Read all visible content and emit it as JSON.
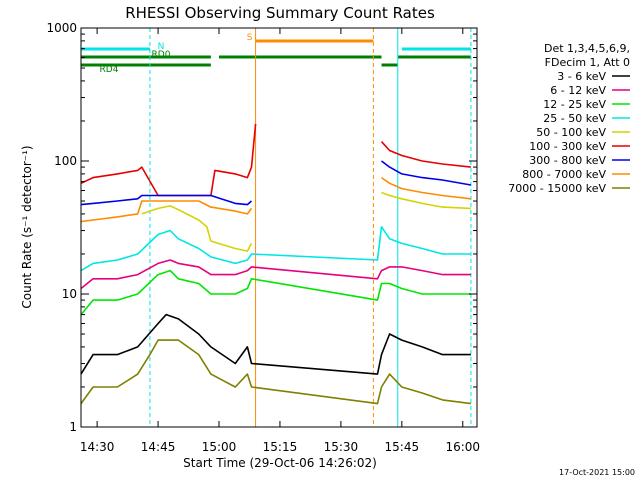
{
  "chart_data": {
    "type": "line",
    "title": "RHESSI Observing Summary Count Rates",
    "xlabel": "Start Time (29-Oct-06 14:26:02)",
    "ylabel": "Count Rate (s⁻¹ detector⁻¹)",
    "y_scale": "log",
    "ylim": [
      1,
      1000
    ],
    "xlim": [
      "14:26:02",
      "16:03:30"
    ],
    "x_ticks": [
      "14:30",
      "14:45",
      "15:00",
      "15:15",
      "15:30",
      "15:45",
      "16:00"
    ],
    "y_ticks": [
      "1",
      "10",
      "100",
      "1000"
    ],
    "legend_title": [
      "Det 1,3,4,5,6,9,",
      "FDecim 1, Att 0"
    ],
    "legend_position": "right",
    "date_stamp": "17-Oct-2021 15:00",
    "series": [
      {
        "name": "3 - 6 keV",
        "color": "#000000",
        "times": [
          "14:26:02",
          "14:29",
          "14:35",
          "14:40",
          "14:45",
          "14:47",
          "14:50",
          "14:55",
          "14:58",
          "15:04",
          "15:07",
          "15:08",
          "15:39",
          "15:40",
          "15:42",
          "15:45",
          "15:50",
          "15:55",
          "16:02"
        ],
        "values": [
          2.5,
          3.5,
          3.5,
          4,
          6,
          7,
          6.5,
          5,
          4,
          3,
          4,
          3,
          2.5,
          3.5,
          5,
          4.5,
          4,
          3.5,
          3.5
        ]
      },
      {
        "name": "6 - 12 keV",
        "color": "#e6007e",
        "times": [
          "14:26:02",
          "14:29",
          "14:35",
          "14:40",
          "14:45",
          "14:48",
          "14:50",
          "14:55",
          "14:58",
          "15:04",
          "15:07",
          "15:08",
          "15:39",
          "15:40",
          "15:42",
          "15:45",
          "15:50",
          "15:55",
          "16:02"
        ],
        "values": [
          11,
          13,
          13,
          14,
          17,
          18,
          17,
          16,
          14,
          14,
          15,
          16,
          13,
          15,
          16,
          16,
          15,
          14,
          14
        ]
      },
      {
        "name": "12 - 25 keV",
        "color": "#00e600",
        "times": [
          "14:26:02",
          "14:29",
          "14:35",
          "14:40",
          "14:45",
          "14:48",
          "14:50",
          "14:55",
          "14:58",
          "15:04",
          "15:07",
          "15:08",
          "15:39",
          "15:40",
          "15:42",
          "15:45",
          "15:50",
          "15:55",
          "16:02"
        ],
        "values": [
          7,
          9,
          9,
          10,
          14,
          15,
          13,
          12,
          10,
          10,
          11,
          13,
          9,
          12,
          12,
          11,
          10,
          10,
          10
        ]
      },
      {
        "name": "25 - 50 keV",
        "color": "#00e6e6",
        "times": [
          "14:26:02",
          "14:29",
          "14:35",
          "14:40",
          "14:45",
          "14:48",
          "14:50",
          "14:55",
          "14:58",
          "15:04",
          "15:07",
          "15:08",
          "15:39",
          "15:40",
          "15:42",
          "15:45",
          "15:50",
          "15:55",
          "16:02"
        ],
        "values": [
          15,
          17,
          18,
          20,
          28,
          30,
          26,
          22,
          19,
          17,
          18,
          20,
          18,
          32,
          26,
          24,
          22,
          20,
          20
        ]
      },
      {
        "name": "50 - 100 keV",
        "color": "#d4d400",
        "times": [
          "14:26:02",
          "14:38",
          "14:41",
          "14:45",
          "14:48",
          "14:50",
          "14:55",
          "14:57",
          "14:58",
          "15:04",
          "15:07",
          "15:08",
          "15:39",
          "15:40",
          "15:42",
          "15:45",
          "15:50",
          "15:55",
          "16:02"
        ],
        "values": [
          null,
          null,
          40,
          44,
          46,
          43,
          36,
          32,
          25,
          22,
          21,
          24,
          null,
          58,
          55,
          52,
          48,
          45,
          44
        ]
      },
      {
        "name": "100 - 300 keV",
        "color": "#e60000",
        "times": [
          "14:26:02",
          "14:29",
          "14:35",
          "14:40",
          "14:41",
          "14:45",
          "14:50",
          "14:55",
          "14:58",
          "14:59",
          "15:04",
          "15:07",
          "15:08",
          "15:09",
          "15:39",
          "15:40",
          "15:42",
          "15:45",
          "15:50",
          "15:55",
          "16:02"
        ],
        "values": [
          68,
          75,
          80,
          85,
          90,
          55,
          55,
          55,
          55,
          85,
          80,
          75,
          90,
          190,
          null,
          140,
          120,
          110,
          100,
          95,
          90
        ]
      },
      {
        "name": "300 - 800 keV",
        "color": "#0000e6",
        "times": [
          "14:26:02",
          "14:29",
          "14:35",
          "14:40",
          "14:41",
          "14:45",
          "14:50",
          "14:55",
          "14:58",
          "15:04",
          "15:07",
          "15:08",
          "15:39",
          "15:40",
          "15:42",
          "15:45",
          "15:50",
          "15:55",
          "16:02"
        ],
        "values": [
          47,
          48,
          50,
          52,
          55,
          55,
          55,
          55,
          55,
          48,
          47,
          50,
          null,
          100,
          90,
          80,
          75,
          72,
          66
        ]
      },
      {
        "name": "800 - 7000 keV",
        "color": "#ff8c00",
        "times": [
          "14:26:02",
          "14:29",
          "14:35",
          "14:40",
          "14:41",
          "14:45",
          "14:50",
          "14:55",
          "14:58",
          "15:04",
          "15:07",
          "15:08",
          "15:39",
          "15:40",
          "15:42",
          "15:45",
          "15:50",
          "15:55",
          "16:02"
        ],
        "values": [
          35,
          36,
          38,
          40,
          50,
          50,
          50,
          50,
          45,
          42,
          40,
          44,
          null,
          75,
          68,
          62,
          58,
          55,
          52
        ]
      },
      {
        "name": "7000 - 15000 keV",
        "color": "#808000",
        "times": [
          "14:26:02",
          "14:29",
          "14:35",
          "14:40",
          "14:43",
          "14:45",
          "14:50",
          "14:55",
          "14:58",
          "15:04",
          "15:07",
          "15:08",
          "15:39",
          "15:40",
          "15:42",
          "15:45",
          "15:50",
          "15:55",
          "16:02"
        ],
        "values": [
          1.5,
          2,
          2,
          2.5,
          3.5,
          4.5,
          4.5,
          3.5,
          2.5,
          2,
          2.5,
          2,
          1.5,
          2,
          2.5,
          2,
          1.8,
          1.6,
          1.5
        ]
      }
    ],
    "flags": [
      {
        "label": "N",
        "color": "#00e6e6",
        "level": 2,
        "segments": [
          [
            "14:26:02",
            "14:43"
          ],
          [
            "15:45",
            "16:02"
          ]
        ]
      },
      {
        "label": "RD0",
        "color": "#008000",
        "level": 1,
        "segments": [
          [
            "14:26:02",
            "14:58"
          ],
          [
            "15:00",
            "15:40"
          ],
          [
            "15:44",
            "16:02"
          ]
        ]
      },
      {
        "label": "RD4",
        "color": "#008000",
        "level": 0,
        "segments": [
          [
            "14:26:02",
            "14:43"
          ],
          [
            "14:43",
            "14:58"
          ],
          [
            "15:40",
            "15:44"
          ]
        ]
      },
      {
        "label": "S",
        "color": "#ff8c00",
        "level": 3,
        "segments": [
          [
            "15:09",
            "15:38"
          ]
        ]
      }
    ],
    "markers": [
      {
        "time": "14:26:02",
        "color": "#00e6e6",
        "style": "solid"
      },
      {
        "time": "14:43",
        "color": "#00e6e6",
        "style": "dashed"
      },
      {
        "time": "15:09",
        "color": "#ff8c00",
        "style": "solid"
      },
      {
        "time": "15:38",
        "color": "#ff8c00",
        "style": "dashed"
      },
      {
        "time": "15:44",
        "color": "#00e6e6",
        "style": "solid"
      },
      {
        "time": "16:02",
        "color": "#00e6e6",
        "style": "dashed"
      }
    ]
  }
}
